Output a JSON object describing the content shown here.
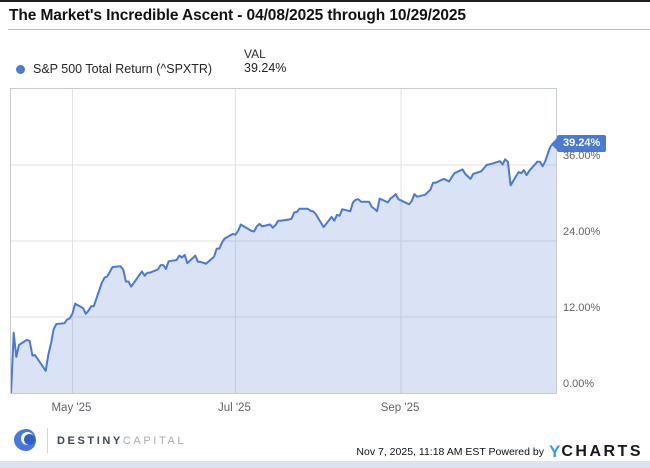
{
  "header": {
    "title": "The Market's Incredible Ascent - 04/08/2025 through 10/29/2025"
  },
  "legend": {
    "val_header": "VAL",
    "series_label": "S&P 500 Total Return (^SPXTR)",
    "series_value": "39.24%"
  },
  "chart_data": {
    "type": "area",
    "title": "The Market's Incredible Ascent - 04/08/2025 through 10/29/2025",
    "series_name": "S&P 500 Total Return (^SPXTR)",
    "start_date": "04/08/2025",
    "end_date": "10/29/2025",
    "ylim": [
      0,
      48
    ],
    "x_max_day": 204,
    "grid": true,
    "legend_position": "top-left",
    "yticks": [
      {
        "label": "0.00%",
        "value": 0
      },
      {
        "label": "12.00%",
        "value": 12
      },
      {
        "label": "24.00%",
        "value": 24
      },
      {
        "label": "36.00%",
        "value": 36
      }
    ],
    "xticks": [
      {
        "label": "May '25",
        "day": 23
      },
      {
        "label": "Jul '25",
        "day": 84
      },
      {
        "label": "Sep '25",
        "day": 146
      }
    ],
    "days": [
      0,
      1,
      2,
      3,
      6,
      7,
      8,
      9,
      13,
      14,
      15,
      16,
      17,
      20,
      21,
      22,
      23,
      24,
      27,
      28,
      29,
      30,
      31,
      34,
      35,
      36,
      37,
      38,
      41,
      42,
      43,
      44,
      45,
      49,
      50,
      51,
      52,
      55,
      56,
      57,
      58,
      59,
      62,
      63,
      64,
      65,
      66,
      69,
      70,
      71,
      73,
      76,
      77,
      78,
      79,
      80,
      83,
      84,
      85,
      86,
      90,
      91,
      92,
      93,
      94,
      97,
      98,
      99,
      100,
      101,
      104,
      105,
      106,
      107,
      108,
      111,
      112,
      113,
      114,
      117,
      120,
      121,
      122,
      123,
      124,
      127,
      128,
      129,
      130,
      131,
      134,
      135,
      136,
      137,
      138,
      141,
      142,
      143,
      144,
      145,
      149,
      150,
      151,
      152,
      155,
      156,
      157,
      158,
      159,
      162,
      163,
      164,
      165,
      166,
      169,
      170,
      171,
      172,
      173,
      176,
      177,
      178,
      179,
      180,
      183,
      184,
      185,
      186,
      187,
      190,
      191,
      192,
      193,
      194,
      197,
      198,
      199,
      200,
      201,
      202,
      203,
      204
    ],
    "values": [
      0,
      9.5,
      5.7,
      7.6,
      8.4,
      8.2,
      5.9,
      6.0,
      3.5,
      6.1,
      7.9,
      10.1,
      10.9,
      11.0,
      11.6,
      11.8,
      12.5,
      14.1,
      13.4,
      12.5,
      13.0,
      13.7,
      13.7,
      17.4,
      18.2,
      18.4,
      19.1,
      19.9,
      20.0,
      19.5,
      17.6,
      17.6,
      16.8,
      19.2,
      18.5,
      19.0,
      19.0,
      19.5,
      20.2,
      20.2,
      19.6,
      20.8,
      21.0,
      21.7,
      21.4,
      21.8,
      20.5,
      21.7,
      20.7,
      20.7,
      20.4,
      21.5,
      22.8,
      22.8,
      23.8,
      24.4,
      25.1,
      25.0,
      25.6,
      26.6,
      25.6,
      25.5,
      26.3,
      26.7,
      26.3,
      26.6,
      26.1,
      26.5,
      27.2,
      27.2,
      27.4,
      27.5,
      28.5,
      28.6,
      29.1,
      29.1,
      28.8,
      28.7,
      28.3,
      26.2,
      27.8,
      27.2,
      28.1,
      28.0,
      29.0,
      28.7,
      30.1,
      30.5,
      30.6,
      30.2,
      30.2,
      29.4,
      29.1,
      28.7,
      30.7,
      30.1,
      30.7,
      31.0,
      31.4,
      30.6,
      29.8,
      30.3,
      31.4,
      31.0,
      31.3,
      31.7,
      32.1,
      33.2,
      33.2,
      33.8,
      33.6,
      33.4,
      34.1,
      34.7,
      35.3,
      34.6,
      34.2,
      33.8,
      34.6,
      35.0,
      35.5,
      36.0,
      36.1,
      36.2,
      36.6,
      36.1,
      36.9,
      36.5,
      32.8,
      34.9,
      34.7,
      35.2,
      34.4,
      35.1,
      36.5,
      36.5,
      35.8,
      36.6,
      37.9,
      39.0,
      39.3,
      39.24
    ],
    "end_value": 39.24,
    "end_label": "39.24%",
    "colors": {
      "line": "#4a7ad2",
      "fill": "rgba(74,122,210,0.21)",
      "tag_bg": "#4a7ad2",
      "grid": "#e1e1e1"
    }
  },
  "footer": {
    "brand_bold": "DESTINY",
    "brand_light": "CAPITAL",
    "attribution": "Nov 7, 2025, 11:18 AM EST Powered by",
    "ycharts_y": "Y",
    "ycharts_rest": "CHARTS"
  }
}
